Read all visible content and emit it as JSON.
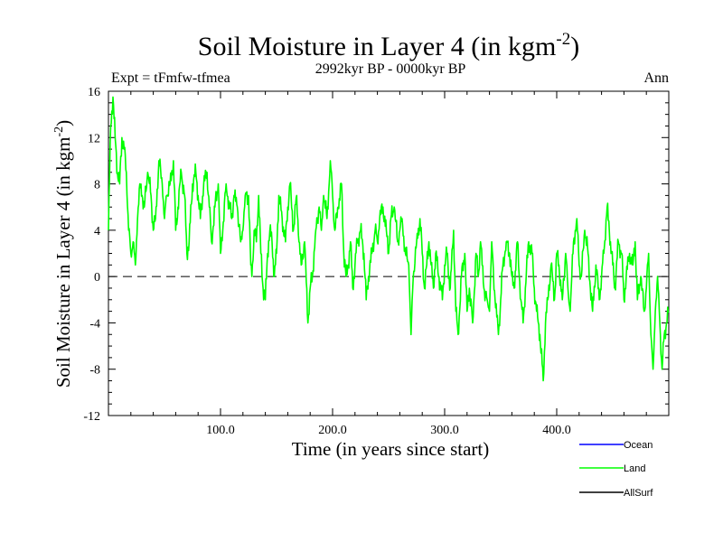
{
  "chart_data": {
    "type": "line",
    "title": "Soil Moisture in Layer 4 (in kgm",
    "title_sup": "-2",
    "title_close": ")",
    "subtitle": "2992kyr BP - 0000kyr BP",
    "experiment": "Expt = tFmfw-tfmea",
    "season": "Ann",
    "xlabel": "Time (in years since start)",
    "ylabel": "Soil Moisture in Layer 4 (in kgm",
    "ylabel_sup": "-2",
    "ylabel_close": ")",
    "xlim": [
      0,
      500
    ],
    "ylim": [
      -12,
      16
    ],
    "xticks": [
      100,
      200,
      300,
      400
    ],
    "xtick_labels": [
      "100.0",
      "200.0",
      "300.0",
      "400.0"
    ],
    "yticks": [
      -12,
      -8,
      -4,
      0,
      4,
      8,
      12,
      16
    ],
    "ytick_labels": [
      "-12",
      "-8",
      "-4",
      "0",
      "4",
      "8",
      "12",
      "16"
    ],
    "zero_line": "dashed",
    "legend": [
      {
        "name": "Ocean",
        "color": "#0000ff"
      },
      {
        "name": "Land",
        "color": "#00ff00"
      },
      {
        "name": "AllSurf",
        "color": "#000000"
      }
    ],
    "series": [
      {
        "name": "Land",
        "color": "#00ff00",
        "anchors": [
          [
            0,
            4
          ],
          [
            2,
            13
          ],
          [
            4,
            15.5
          ],
          [
            6,
            12
          ],
          [
            8,
            9
          ],
          [
            10,
            8
          ],
          [
            12,
            12
          ],
          [
            14,
            11
          ],
          [
            16,
            9
          ],
          [
            18,
            4
          ],
          [
            20,
            2
          ],
          [
            22,
            3
          ],
          [
            24,
            1
          ],
          [
            26,
            5
          ],
          [
            28,
            8
          ],
          [
            30,
            7
          ],
          [
            32,
            6
          ],
          [
            35,
            9
          ],
          [
            38,
            7
          ],
          [
            40,
            4
          ],
          [
            42,
            5
          ],
          [
            45,
            10
          ],
          [
            48,
            8
          ],
          [
            50,
            5
          ],
          [
            52,
            7
          ],
          [
            55,
            8
          ],
          [
            58,
            10
          ],
          [
            60,
            4
          ],
          [
            62,
            6
          ],
          [
            65,
            9
          ],
          [
            68,
            7
          ],
          [
            70,
            2
          ],
          [
            72,
            3
          ],
          [
            75,
            8
          ],
          [
            78,
            9
          ],
          [
            80,
            7
          ],
          [
            82,
            5
          ],
          [
            85,
            8
          ],
          [
            88,
            9
          ],
          [
            90,
            6
          ],
          [
            92,
            3
          ],
          [
            95,
            6
          ],
          [
            98,
            8
          ],
          [
            100,
            2
          ],
          [
            102,
            4
          ],
          [
            105,
            8
          ],
          [
            108,
            6
          ],
          [
            110,
            5
          ],
          [
            112,
            7
          ],
          [
            115,
            6
          ],
          [
            118,
            3
          ],
          [
            120,
            4
          ],
          [
            122,
            7
          ],
          [
            125,
            7
          ],
          [
            127,
            1
          ],
          [
            128,
            0
          ],
          [
            130,
            4
          ],
          [
            132,
            3
          ],
          [
            134,
            7
          ],
          [
            136,
            2
          ],
          [
            138,
            -1
          ],
          [
            140,
            -2
          ],
          [
            142,
            2
          ],
          [
            144,
            4
          ],
          [
            146,
            3
          ],
          [
            148,
            0
          ],
          [
            150,
            2
          ],
          [
            152,
            7
          ],
          [
            155,
            5
          ],
          [
            158,
            3
          ],
          [
            160,
            6
          ],
          [
            162,
            8
          ],
          [
            165,
            4
          ],
          [
            168,
            7
          ],
          [
            170,
            3
          ],
          [
            172,
            1
          ],
          [
            175,
            3
          ],
          [
            178,
            -4
          ],
          [
            180,
            -1
          ],
          [
            182,
            0
          ],
          [
            185,
            4
          ],
          [
            188,
            6
          ],
          [
            190,
            4
          ],
          [
            192,
            7
          ],
          [
            195,
            5
          ],
          [
            198,
            10
          ],
          [
            200,
            7
          ],
          [
            202,
            4
          ],
          [
            205,
            6
          ],
          [
            208,
            8
          ],
          [
            210,
            2
          ],
          [
            212,
            0
          ],
          [
            214,
            1
          ],
          [
            216,
            3
          ],
          [
            218,
            -1
          ],
          [
            220,
            1
          ],
          [
            222,
            3
          ],
          [
            225,
            4
          ],
          [
            228,
            2
          ],
          [
            230,
            -2
          ],
          [
            232,
            0
          ],
          [
            235,
            2
          ],
          [
            238,
            4
          ],
          [
            240,
            3
          ],
          [
            242,
            5
          ],
          [
            245,
            6
          ],
          [
            248,
            4
          ],
          [
            250,
            2
          ],
          [
            252,
            5
          ],
          [
            255,
            6
          ],
          [
            258,
            3
          ],
          [
            260,
            4
          ],
          [
            262,
            5
          ],
          [
            265,
            2
          ],
          [
            268,
            1
          ],
          [
            270,
            -5
          ],
          [
            272,
            0
          ],
          [
            275,
            3
          ],
          [
            278,
            5
          ],
          [
            280,
            2
          ],
          [
            282,
            -1
          ],
          [
            284,
            1
          ],
          [
            286,
            3
          ],
          [
            288,
            1
          ],
          [
            290,
            -1
          ],
          [
            292,
            2
          ],
          [
            295,
            0
          ],
          [
            298,
            -2
          ],
          [
            300,
            1
          ],
          [
            302,
            2
          ],
          [
            305,
            -1
          ],
          [
            308,
            4
          ],
          [
            310,
            -3
          ],
          [
            312,
            -5
          ],
          [
            315,
            0
          ],
          [
            318,
            2
          ],
          [
            320,
            -3
          ],
          [
            322,
            -1
          ],
          [
            325,
            -4
          ],
          [
            328,
            2
          ],
          [
            330,
            0
          ],
          [
            332,
            3
          ],
          [
            335,
            -1
          ],
          [
            338,
            -2
          ],
          [
            340,
            -3
          ],
          [
            342,
            3
          ],
          [
            345,
            -2
          ],
          [
            348,
            -5
          ],
          [
            350,
            -2
          ],
          [
            352,
            1
          ],
          [
            355,
            3
          ],
          [
            358,
            2
          ],
          [
            360,
            0
          ],
          [
            362,
            -1
          ],
          [
            365,
            3
          ],
          [
            368,
            -2
          ],
          [
            370,
            -4
          ],
          [
            372,
            -1
          ],
          [
            375,
            3
          ],
          [
            378,
            2
          ],
          [
            380,
            -1
          ],
          [
            382,
            -3
          ],
          [
            385,
            -5
          ],
          [
            388,
            -9
          ],
          [
            390,
            -4
          ],
          [
            392,
            -2
          ],
          [
            395,
            1
          ],
          [
            398,
            -2
          ],
          [
            400,
            2
          ],
          [
            402,
            1
          ],
          [
            405,
            -2
          ],
          [
            408,
            2
          ],
          [
            410,
            -1
          ],
          [
            412,
            -3
          ],
          [
            415,
            3
          ],
          [
            418,
            5
          ],
          [
            420,
            1
          ],
          [
            422,
            0
          ],
          [
            425,
            4
          ],
          [
            428,
            2
          ],
          [
            430,
            -1
          ],
          [
            432,
            -3
          ],
          [
            435,
            1
          ],
          [
            438,
            -2
          ],
          [
            440,
            0
          ],
          [
            442,
            2
          ],
          [
            445,
            6
          ],
          [
            448,
            3
          ],
          [
            450,
            1
          ],
          [
            452,
            -1
          ],
          [
            455,
            3
          ],
          [
            458,
            2
          ],
          [
            460,
            -2
          ],
          [
            462,
            0
          ],
          [
            465,
            2
          ],
          [
            468,
            1
          ],
          [
            470,
            3
          ],
          [
            472,
            -2
          ],
          [
            475,
            0
          ],
          [
            478,
            -3
          ],
          [
            480,
            -1
          ],
          [
            482,
            2
          ],
          [
            484,
            -5
          ],
          [
            486,
            -8
          ],
          [
            488,
            -3
          ],
          [
            490,
            0
          ],
          [
            492,
            -4
          ],
          [
            494,
            -8
          ],
          [
            496,
            -5
          ],
          [
            498,
            -4
          ],
          [
            500,
            -3
          ]
        ]
      }
    ]
  }
}
